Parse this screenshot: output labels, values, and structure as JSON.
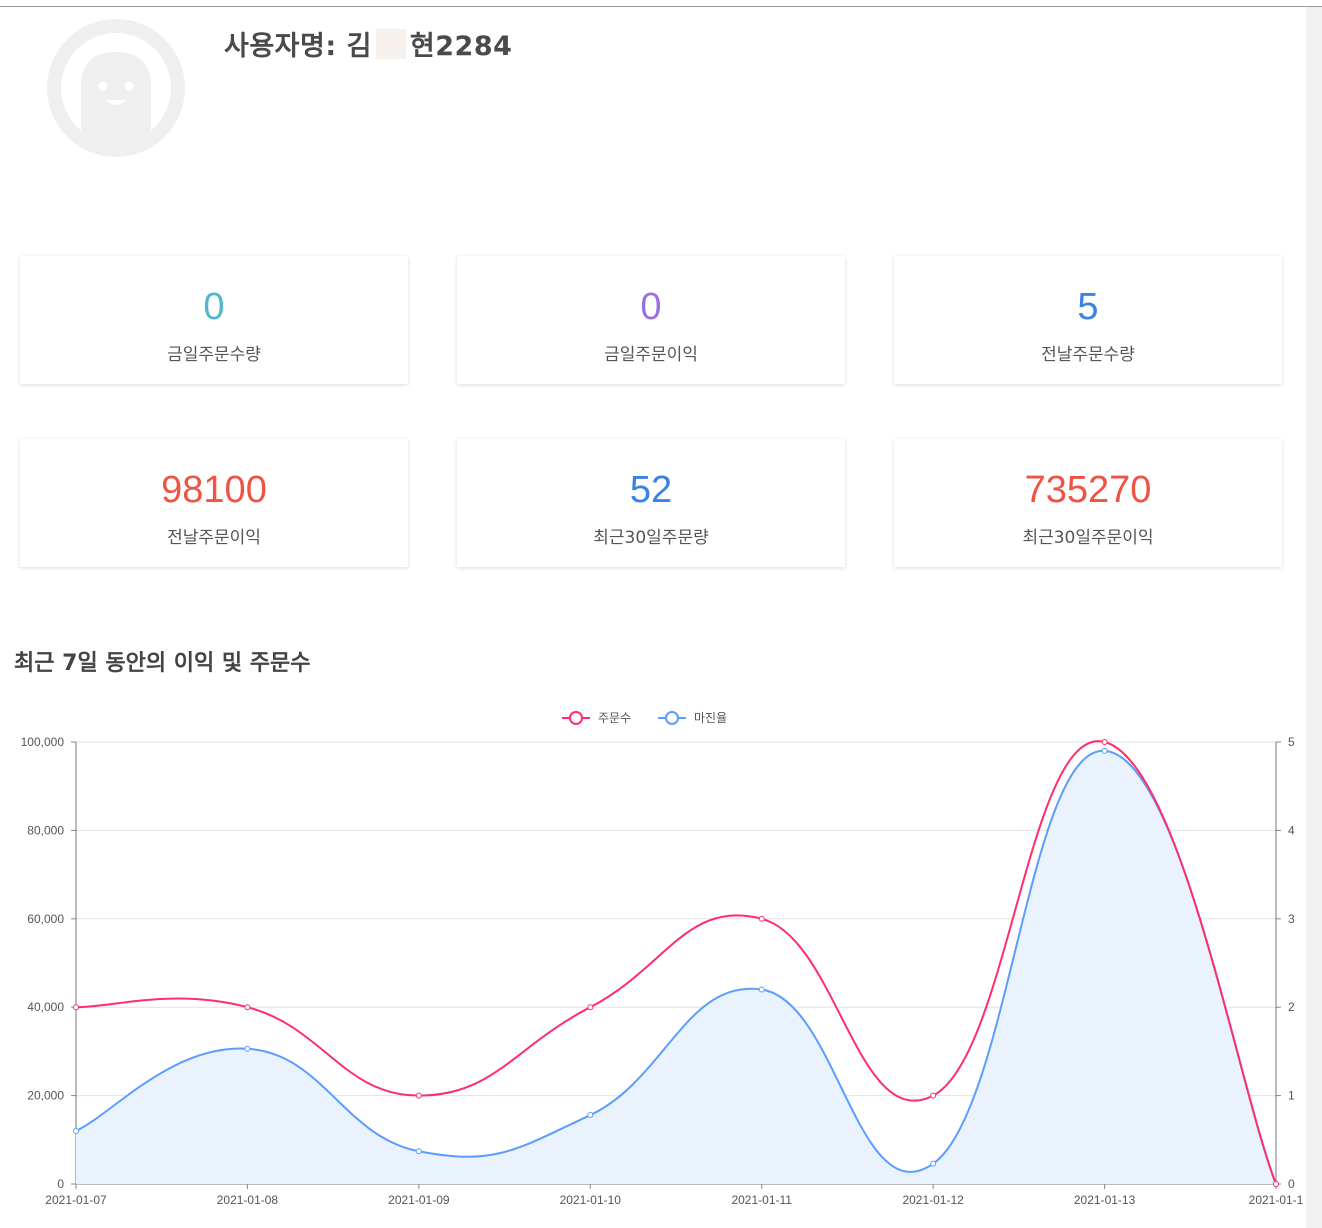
{
  "profile": {
    "label": "사용자명:",
    "name_first": "김",
    "name_rest": "현2284"
  },
  "stats": [
    {
      "value": "0",
      "label": "금일주문수량",
      "color": "#4fb8cc"
    },
    {
      "value": "0",
      "label": "금일주문이익",
      "color": "#9b6fe0"
    },
    {
      "value": "5",
      "label": "전날주문수량",
      "color": "#3b82e6"
    },
    {
      "value": "98100",
      "label": "전날주문이익",
      "color": "#ef5343"
    },
    {
      "value": "52",
      "label": "최근30일주문량",
      "color": "#3b82e6"
    },
    {
      "value": "735270",
      "label": "최근30일주문이익",
      "color": "#ef5343"
    }
  ],
  "section_title": "최근 7일 동안의 이익 및 주문수",
  "colors": {
    "series1": "#ff2d6e",
    "series2": "#5b9dff",
    "area": "#eaf2fd"
  },
  "chart_data": {
    "type": "line",
    "x": [
      "2021-01-07",
      "2021-01-08",
      "2021-01-09",
      "2021-01-10",
      "2021-01-11",
      "2021-01-12",
      "2021-01-13",
      "2021-01-1"
    ],
    "series": [
      {
        "name": "주문수",
        "axis": "left",
        "values": [
          40000,
          40000,
          20000,
          40000,
          60000,
          20000,
          100000,
          0
        ]
      },
      {
        "name": "마진율",
        "axis": "right",
        "values": [
          0.6,
          1.53,
          0.37,
          0.78,
          2.2,
          0.23,
          4.9,
          0
        ]
      }
    ],
    "y_left": {
      "min": 0,
      "max": 100000,
      "ticks": [
        "0",
        "20,000",
        "40,000",
        "60,000",
        "80,000",
        "100,000"
      ]
    },
    "y_right": {
      "min": 0,
      "max": 5,
      "ticks": [
        "0",
        "1",
        "2",
        "3",
        "4",
        "5"
      ]
    },
    "legend": "top-center",
    "grid": true
  }
}
